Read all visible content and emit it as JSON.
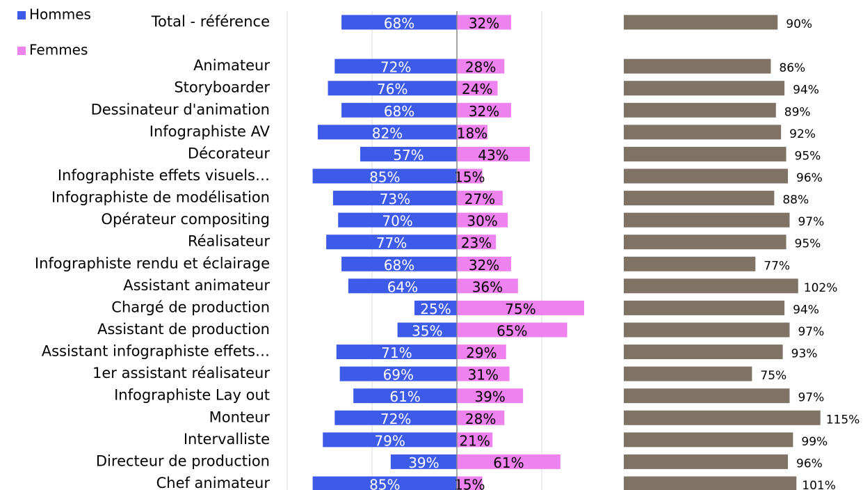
{
  "chart_data": {
    "type": "diverging_bar",
    "categories": [
      "Total - référence",
      null,
      "Animateur",
      "Storyboarder",
      "Dessinateur d'animation",
      "Infographiste AV",
      "Décorateur",
      "Infographiste effets visuels…",
      "Infographiste de modélisation",
      "Opérateur compositing",
      "Réalisateur",
      "Infographiste rendu et éclairage",
      "Assistant animateur",
      "Chargé de production",
      "Assistant de production",
      "Assistant infographiste effets…",
      "1er assistant réalisateur",
      "Infographiste Lay out",
      "Monteur",
      "Intervalliste",
      "Directeur de production",
      "Chef animateur"
    ],
    "series": [
      {
        "name": "Hommes",
        "color": "#3d5be8",
        "values": [
          68,
          null,
          72,
          76,
          68,
          82,
          57,
          85,
          73,
          70,
          77,
          68,
          64,
          25,
          35,
          71,
          69,
          61,
          72,
          79,
          39,
          85
        ],
        "value_labels": [
          "68%",
          null,
          "72%",
          "76%",
          "68%",
          "82%",
          "57%",
          "85%",
          "73%",
          "70%",
          "77%",
          "68%",
          "64%",
          "25%",
          "35%",
          "71%",
          "69%",
          "61%",
          "72%",
          "79%",
          "39%",
          "85%"
        ]
      },
      {
        "name": "Femmes",
        "color": "#ee82ee",
        "values": [
          32,
          null,
          28,
          24,
          32,
          18,
          43,
          15,
          27,
          30,
          23,
          32,
          36,
          75,
          65,
          29,
          31,
          39,
          28,
          21,
          61,
          15
        ],
        "value_labels": [
          "32%",
          null,
          "28%",
          "24%",
          "32%",
          "18%",
          "43%",
          "15%",
          "27%",
          "30%",
          "23%",
          "32%",
          "36%",
          "75%",
          "65%",
          "29%",
          "31%",
          "39%",
          "28%",
          "21%",
          "61%",
          "15%"
        ]
      },
      {
        "color": "#7f7366",
        "panel": "right",
        "values": [
          90,
          null,
          86,
          94,
          89,
          92,
          95,
          96,
          88,
          97,
          95,
          77,
          102,
          94,
          97,
          93,
          75,
          97,
          115,
          99,
          96,
          101
        ],
        "value_labels": [
          "90%",
          null,
          "86%",
          "94%",
          "89%",
          "92%",
          "95%",
          "96%",
          "88%",
          "97%",
          "95%",
          "77%",
          "102%",
          "94%",
          "97%",
          "93%",
          "75%",
          "97%",
          "115%",
          "99%",
          "96%",
          "101%"
        ]
      }
    ],
    "xlim": [
      -100,
      100
    ],
    "xticks": [
      -100,
      -50,
      0,
      50
    ],
    "grid": true,
    "x2lim": [
      0,
      120
    ]
  }
}
